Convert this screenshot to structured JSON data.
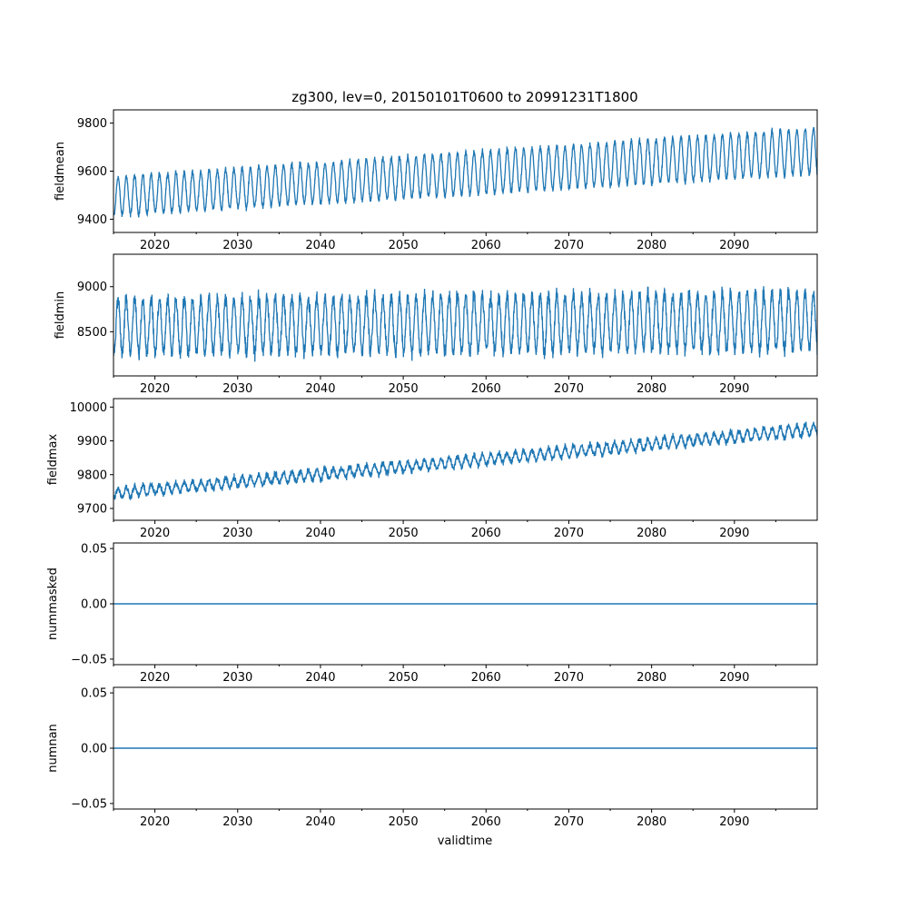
{
  "figure": {
    "title": "zg300, lev=0, 20150101T0600 to 20991231T1800",
    "xlabel": "validtime",
    "series_color": "#1f77b4"
  },
  "chart_data": [
    {
      "type": "line",
      "name": "fieldmean",
      "ylabel": "fieldmean",
      "xlim": [
        2015.0,
        2100.0
      ],
      "ylim": [
        9345,
        9855
      ],
      "xticks": [
        2020,
        2030,
        2040,
        2050,
        2060,
        2070,
        2080,
        2090
      ],
      "yticks": [
        9400,
        9600,
        9800
      ],
      "ytick_labels": [
        "9400",
        "9600",
        "9800"
      ],
      "signal": {
        "base_start": 9495,
        "base_end": 9685,
        "amp_start": 80,
        "amp_end": 95,
        "noise": 18,
        "min": 9360,
        "max": 9840
      }
    },
    {
      "type": "line",
      "name": "fieldmin",
      "ylabel": "fieldmin",
      "xlim": [
        2015.0,
        2100.0
      ],
      "ylim": [
        8010,
        9360
      ],
      "xticks": [
        2020,
        2030,
        2040,
        2050,
        2060,
        2070,
        2080,
        2090
      ],
      "yticks": [
        8500,
        9000
      ],
      "ytick_labels": [
        "8500",
        "9000"
      ],
      "signal": {
        "base_start": 8560,
        "base_end": 8620,
        "amp_start": 300,
        "amp_end": 320,
        "noise": 120,
        "min": 8080,
        "max": 9320
      }
    },
    {
      "type": "line",
      "name": "fieldmax",
      "ylabel": "fieldmax",
      "xlim": [
        2015.0,
        2100.0
      ],
      "ylim": [
        9665,
        10025
      ],
      "xticks": [
        2020,
        2030,
        2040,
        2050,
        2060,
        2070,
        2080,
        2090
      ],
      "yticks": [
        9700,
        9800,
        9900,
        10000
      ],
      "ytick_labels": [
        "9700",
        "9800",
        "9900",
        "10000"
      ],
      "signal": {
        "base_start": 9745,
        "base_end": 9935,
        "amp_start": 14,
        "amp_end": 16,
        "noise": 14,
        "min": 9685,
        "max": 10015
      }
    },
    {
      "type": "line",
      "name": "nummasked",
      "ylabel": "nummasked",
      "xlim": [
        2015.0,
        2100.0
      ],
      "ylim": [
        -0.055,
        0.055
      ],
      "xticks": [
        2020,
        2030,
        2040,
        2050,
        2060,
        2070,
        2080,
        2090
      ],
      "yticks": [
        -0.05,
        0.0,
        0.05
      ],
      "ytick_labels": [
        "−0.05",
        "0.00",
        "0.05"
      ],
      "constant": 0.0
    },
    {
      "type": "line",
      "name": "numnan",
      "ylabel": "numnan",
      "xlim": [
        2015.0,
        2100.0
      ],
      "ylim": [
        -0.055,
        0.055
      ],
      "xticks": [
        2020,
        2030,
        2040,
        2050,
        2060,
        2070,
        2080,
        2090
      ],
      "yticks": [
        -0.05,
        0.0,
        0.05
      ],
      "ytick_labels": [
        "−0.05",
        "0.00",
        "0.05"
      ],
      "constant": 0.0
    }
  ]
}
